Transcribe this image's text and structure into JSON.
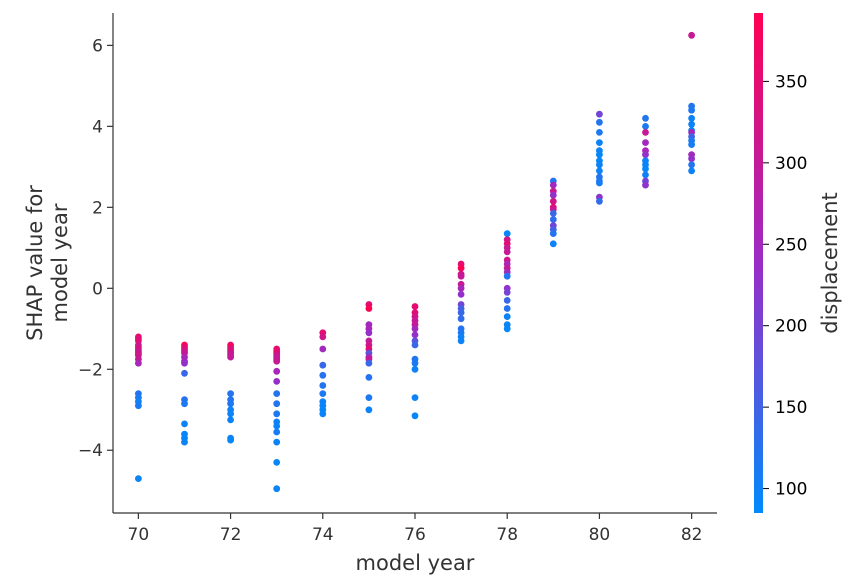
{
  "chart_data": {
    "type": "scatter",
    "title": "",
    "xlabel": "model year",
    "ylabel_lines": [
      "SHAP value for",
      "model year"
    ],
    "xlim": [
      69.45,
      82.55
    ],
    "ylim": [
      -5.55,
      6.8
    ],
    "xticks": [
      70,
      72,
      74,
      76,
      78,
      80,
      82
    ],
    "yticks": [
      -4,
      -2,
      0,
      2,
      4,
      6
    ],
    "colorbar": {
      "label": "displacement",
      "min": 85,
      "max": 392,
      "ticks": [
        100,
        150,
        200,
        250,
        300,
        350
      ],
      "low_color": "#008afb",
      "mid_color": "#9b2cc7",
      "high_color": "#ff0052"
    },
    "points": [
      {
        "x": 70,
        "y": -1.2,
        "d": 360
      },
      {
        "x": 70,
        "y": -1.25,
        "d": 340
      },
      {
        "x": 70,
        "y": -1.3,
        "d": 350
      },
      {
        "x": 70,
        "y": -1.4,
        "d": 318
      },
      {
        "x": 70,
        "y": -1.45,
        "d": 300
      },
      {
        "x": 70,
        "y": -1.5,
        "d": 350
      },
      {
        "x": 70,
        "y": -1.55,
        "d": 304
      },
      {
        "x": 70,
        "y": -1.6,
        "d": 307
      },
      {
        "x": 70,
        "y": -1.65,
        "d": 318
      },
      {
        "x": 70,
        "y": -1.75,
        "d": 302
      },
      {
        "x": 70,
        "y": -1.85,
        "d": 260
      },
      {
        "x": 70,
        "y": -2.6,
        "d": 120
      },
      {
        "x": 70,
        "y": -2.7,
        "d": 113
      },
      {
        "x": 70,
        "y": -2.8,
        "d": 97
      },
      {
        "x": 70,
        "y": -2.9,
        "d": 110
      },
      {
        "x": 70,
        "y": -4.7,
        "d": 97
      },
      {
        "x": 71,
        "y": -1.4,
        "d": 400
      },
      {
        "x": 71,
        "y": -1.45,
        "d": 350
      },
      {
        "x": 71,
        "y": -1.5,
        "d": 351
      },
      {
        "x": 71,
        "y": -1.55,
        "d": 318
      },
      {
        "x": 71,
        "y": -1.6,
        "d": 304
      },
      {
        "x": 71,
        "y": -1.7,
        "d": 258
      },
      {
        "x": 71,
        "y": -1.8,
        "d": 250
      },
      {
        "x": 71,
        "y": -1.85,
        "d": 232
      },
      {
        "x": 71,
        "y": -2.1,
        "d": 140
      },
      {
        "x": 71,
        "y": -2.75,
        "d": 122
      },
      {
        "x": 71,
        "y": -2.85,
        "d": 113
      },
      {
        "x": 71,
        "y": -3.35,
        "d": 98
      },
      {
        "x": 71,
        "y": -3.6,
        "d": 97
      },
      {
        "x": 71,
        "y": -3.7,
        "d": 90
      },
      {
        "x": 71,
        "y": -3.8,
        "d": 98
      },
      {
        "x": 72,
        "y": -1.4,
        "d": 350
      },
      {
        "x": 72,
        "y": -1.45,
        "d": 400
      },
      {
        "x": 72,
        "y": -1.5,
        "d": 318
      },
      {
        "x": 72,
        "y": -1.55,
        "d": 351
      },
      {
        "x": 72,
        "y": -1.6,
        "d": 304
      },
      {
        "x": 72,
        "y": -1.65,
        "d": 307
      },
      {
        "x": 72,
        "y": -1.7,
        "d": 302
      },
      {
        "x": 72,
        "y": -2.6,
        "d": 122
      },
      {
        "x": 72,
        "y": -2.75,
        "d": 121
      },
      {
        "x": 72,
        "y": -2.85,
        "d": 113
      },
      {
        "x": 72,
        "y": -3.0,
        "d": 98
      },
      {
        "x": 72,
        "y": -3.1,
        "d": 97
      },
      {
        "x": 72,
        "y": -3.25,
        "d": 96
      },
      {
        "x": 72,
        "y": -3.7,
        "d": 97
      },
      {
        "x": 72,
        "y": -3.75,
        "d": 90
      },
      {
        "x": 73,
        "y": -1.5,
        "d": 360
      },
      {
        "x": 73,
        "y": -1.55,
        "d": 350
      },
      {
        "x": 73,
        "y": -1.6,
        "d": 351
      },
      {
        "x": 73,
        "y": -1.65,
        "d": 318
      },
      {
        "x": 73,
        "y": -1.7,
        "d": 302
      },
      {
        "x": 73,
        "y": -1.75,
        "d": 307
      },
      {
        "x": 73,
        "y": -1.8,
        "d": 304
      },
      {
        "x": 73,
        "y": -2.05,
        "d": 258
      },
      {
        "x": 73,
        "y": -2.3,
        "d": 232
      },
      {
        "x": 73,
        "y": -2.6,
        "d": 120
      },
      {
        "x": 73,
        "y": -2.85,
        "d": 121
      },
      {
        "x": 73,
        "y": -3.1,
        "d": 113
      },
      {
        "x": 73,
        "y": -3.3,
        "d": 98
      },
      {
        "x": 73,
        "y": -3.4,
        "d": 97
      },
      {
        "x": 73,
        "y": -3.55,
        "d": 107
      },
      {
        "x": 73,
        "y": -3.8,
        "d": 97
      },
      {
        "x": 73,
        "y": -4.3,
        "d": 91
      },
      {
        "x": 73,
        "y": -4.95,
        "d": 97
      },
      {
        "x": 74,
        "y": -1.1,
        "d": 350
      },
      {
        "x": 74,
        "y": -1.2,
        "d": 318
      },
      {
        "x": 74,
        "y": -1.5,
        "d": 250
      },
      {
        "x": 74,
        "y": -1.9,
        "d": 140
      },
      {
        "x": 74,
        "y": -2.15,
        "d": 122
      },
      {
        "x": 74,
        "y": -2.4,
        "d": 120
      },
      {
        "x": 74,
        "y": -2.6,
        "d": 113
      },
      {
        "x": 74,
        "y": -2.8,
        "d": 98
      },
      {
        "x": 74,
        "y": -2.9,
        "d": 97
      },
      {
        "x": 74,
        "y": -3.0,
        "d": 90
      },
      {
        "x": 74,
        "y": -3.1,
        "d": 97
      },
      {
        "x": 75,
        "y": -0.4,
        "d": 350
      },
      {
        "x": 75,
        "y": -0.5,
        "d": 400
      },
      {
        "x": 75,
        "y": -0.9,
        "d": 250
      },
      {
        "x": 75,
        "y": -1.0,
        "d": 258
      },
      {
        "x": 75,
        "y": -1.1,
        "d": 232
      },
      {
        "x": 75,
        "y": -1.3,
        "d": 302
      },
      {
        "x": 75,
        "y": -1.4,
        "d": 318
      },
      {
        "x": 75,
        "y": -1.5,
        "d": 350
      },
      {
        "x": 75,
        "y": -1.6,
        "d": 171
      },
      {
        "x": 75,
        "y": -1.7,
        "d": 250
      },
      {
        "x": 75,
        "y": -1.75,
        "d": 304
      },
      {
        "x": 75,
        "y": -1.85,
        "d": 140
      },
      {
        "x": 75,
        "y": -2.2,
        "d": 121
      },
      {
        "x": 75,
        "y": -2.7,
        "d": 113
      },
      {
        "x": 75,
        "y": -3.0,
        "d": 97
      },
      {
        "x": 76,
        "y": -0.45,
        "d": 350
      },
      {
        "x": 76,
        "y": -0.6,
        "d": 351
      },
      {
        "x": 76,
        "y": -0.7,
        "d": 318
      },
      {
        "x": 76,
        "y": -0.8,
        "d": 302
      },
      {
        "x": 76,
        "y": -0.9,
        "d": 304
      },
      {
        "x": 76,
        "y": -1.0,
        "d": 250
      },
      {
        "x": 76,
        "y": -1.15,
        "d": 232
      },
      {
        "x": 76,
        "y": -1.3,
        "d": 171
      },
      {
        "x": 76,
        "y": -1.4,
        "d": 140
      },
      {
        "x": 76,
        "y": -1.75,
        "d": 120
      },
      {
        "x": 76,
        "y": -1.85,
        "d": 113
      },
      {
        "x": 76,
        "y": -2.0,
        "d": 98
      },
      {
        "x": 76,
        "y": -2.7,
        "d": 97
      },
      {
        "x": 76,
        "y": -3.15,
        "d": 90
      },
      {
        "x": 77,
        "y": 0.6,
        "d": 350
      },
      {
        "x": 77,
        "y": 0.5,
        "d": 400
      },
      {
        "x": 77,
        "y": 0.35,
        "d": 318
      },
      {
        "x": 77,
        "y": 0.3,
        "d": 304
      },
      {
        "x": 77,
        "y": 0.1,
        "d": 305
      },
      {
        "x": 77,
        "y": 0.0,
        "d": 258
      },
      {
        "x": 77,
        "y": -0.15,
        "d": 231
      },
      {
        "x": 77,
        "y": -0.4,
        "d": 200
      },
      {
        "x": 77,
        "y": -0.5,
        "d": 151
      },
      {
        "x": 77,
        "y": -0.6,
        "d": 140
      },
      {
        "x": 77,
        "y": -0.75,
        "d": 134
      },
      {
        "x": 77,
        "y": -1.0,
        "d": 121
      },
      {
        "x": 77,
        "y": -1.1,
        "d": 113
      },
      {
        "x": 77,
        "y": -1.2,
        "d": 98
      },
      {
        "x": 77,
        "y": -1.3,
        "d": 97
      },
      {
        "x": 78,
        "y": 1.35,
        "d": 90
      },
      {
        "x": 78,
        "y": 1.2,
        "d": 318
      },
      {
        "x": 78,
        "y": 1.1,
        "d": 350
      },
      {
        "x": 78,
        "y": 1.0,
        "d": 305
      },
      {
        "x": 78,
        "y": 0.9,
        "d": 302
      },
      {
        "x": 78,
        "y": 0.7,
        "d": 318
      },
      {
        "x": 78,
        "y": 0.6,
        "d": 260
      },
      {
        "x": 78,
        "y": 0.5,
        "d": 305
      },
      {
        "x": 78,
        "y": 0.4,
        "d": 250
      },
      {
        "x": 78,
        "y": 0.3,
        "d": 120
      },
      {
        "x": 78,
        "y": 0.0,
        "d": 231
      },
      {
        "x": 78,
        "y": -0.1,
        "d": 200
      },
      {
        "x": 78,
        "y": -0.3,
        "d": 140
      },
      {
        "x": 78,
        "y": -0.5,
        "d": 122
      },
      {
        "x": 78,
        "y": -0.7,
        "d": 98
      },
      {
        "x": 78,
        "y": -0.9,
        "d": 97
      },
      {
        "x": 78,
        "y": -1.0,
        "d": 90
      },
      {
        "x": 79,
        "y": 2.65,
        "d": 120
      },
      {
        "x": 79,
        "y": 2.55,
        "d": 250
      },
      {
        "x": 79,
        "y": 2.4,
        "d": 304
      },
      {
        "x": 79,
        "y": 2.3,
        "d": 231
      },
      {
        "x": 79,
        "y": 2.15,
        "d": 318
      },
      {
        "x": 79,
        "y": 2.0,
        "d": 350
      },
      {
        "x": 79,
        "y": 1.95,
        "d": 305
      },
      {
        "x": 79,
        "y": 1.85,
        "d": 140
      },
      {
        "x": 79,
        "y": 1.7,
        "d": 130
      },
      {
        "x": 79,
        "y": 1.55,
        "d": 200
      },
      {
        "x": 79,
        "y": 1.45,
        "d": 151
      },
      {
        "x": 79,
        "y": 1.35,
        "d": 121
      },
      {
        "x": 79,
        "y": 1.1,
        "d": 98
      },
      {
        "x": 80,
        "y": 4.3,
        "d": 198
      },
      {
        "x": 80,
        "y": 4.1,
        "d": 120
      },
      {
        "x": 80,
        "y": 3.85,
        "d": 113
      },
      {
        "x": 80,
        "y": 3.6,
        "d": 98
      },
      {
        "x": 80,
        "y": 3.4,
        "d": 97
      },
      {
        "x": 80,
        "y": 3.3,
        "d": 90
      },
      {
        "x": 80,
        "y": 3.15,
        "d": 91
      },
      {
        "x": 80,
        "y": 3.05,
        "d": 98
      },
      {
        "x": 80,
        "y": 2.9,
        "d": 97
      },
      {
        "x": 80,
        "y": 2.75,
        "d": 120
      },
      {
        "x": 80,
        "y": 2.65,
        "d": 113
      },
      {
        "x": 80,
        "y": 2.6,
        "d": 108
      },
      {
        "x": 80,
        "y": 2.25,
        "d": 225
      },
      {
        "x": 80,
        "y": 2.15,
        "d": 134
      },
      {
        "x": 81,
        "y": 4.2,
        "d": 120
      },
      {
        "x": 81,
        "y": 4.0,
        "d": 113
      },
      {
        "x": 81,
        "y": 3.85,
        "d": 305
      },
      {
        "x": 81,
        "y": 3.6,
        "d": 250
      },
      {
        "x": 81,
        "y": 3.4,
        "d": 260
      },
      {
        "x": 81,
        "y": 3.3,
        "d": 231
      },
      {
        "x": 81,
        "y": 3.15,
        "d": 98
      },
      {
        "x": 81,
        "y": 3.05,
        "d": 97
      },
      {
        "x": 81,
        "y": 2.95,
        "d": 90
      },
      {
        "x": 81,
        "y": 2.8,
        "d": 105
      },
      {
        "x": 81,
        "y": 2.65,
        "d": 200
      },
      {
        "x": 81,
        "y": 2.55,
        "d": 225
      },
      {
        "x": 82,
        "y": 6.25,
        "d": 305
      },
      {
        "x": 82,
        "y": 4.5,
        "d": 120
      },
      {
        "x": 82,
        "y": 4.4,
        "d": 113
      },
      {
        "x": 82,
        "y": 4.2,
        "d": 98
      },
      {
        "x": 82,
        "y": 4.05,
        "d": 97
      },
      {
        "x": 82,
        "y": 3.9,
        "d": 90
      },
      {
        "x": 82,
        "y": 3.85,
        "d": 260
      },
      {
        "x": 82,
        "y": 3.75,
        "d": 151
      },
      {
        "x": 82,
        "y": 3.65,
        "d": 112
      },
      {
        "x": 82,
        "y": 3.55,
        "d": 107
      },
      {
        "x": 82,
        "y": 3.3,
        "d": 250
      },
      {
        "x": 82,
        "y": 3.2,
        "d": 232
      },
      {
        "x": 82,
        "y": 3.05,
        "d": 120
      },
      {
        "x": 82,
        "y": 2.9,
        "d": 98
      }
    ]
  }
}
